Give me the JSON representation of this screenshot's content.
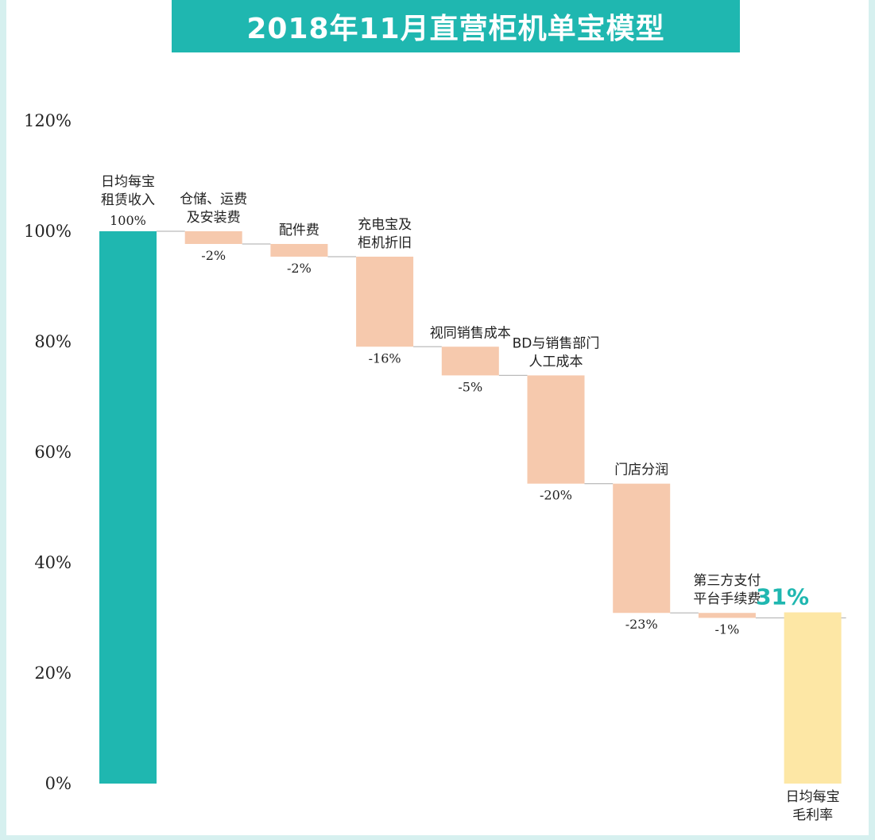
{
  "chart_data": {
    "type": "bar",
    "subtype": "waterfall",
    "title": "2018年11月直营柜机单宝模型",
    "ylim": [
      0,
      120
    ],
    "yticks": [
      "0%",
      "20%",
      "40%",
      "60%",
      "80%",
      "100%",
      "120%"
    ],
    "ytick_values": [
      0,
      20,
      40,
      60,
      80,
      100,
      120
    ],
    "categories": [
      [
        "日均每宝",
        "租赁收入"
      ],
      [
        "仓储、运费",
        "及安装费"
      ],
      [
        "配件费"
      ],
      [
        "充电宝及",
        "柜机折旧"
      ],
      [
        "视同销售成本"
      ],
      [
        "BD与销售部门",
        "人工成本"
      ],
      [
        "门店分润"
      ],
      [
        "第三方支付",
        "平台手续费"
      ],
      [
        "日均每宝",
        "毛利率"
      ]
    ],
    "values": [
      100,
      -2.3,
      -2.3,
      -16.3,
      -5.2,
      -19.6,
      -23.4,
      -0.9,
      31
    ],
    "value_labels": [
      "100%",
      "-2%",
      "-2%",
      "-16%",
      "-5%",
      "-20%",
      "-23%",
      "-1%",
      "31%"
    ],
    "colors": {
      "start": "#1fb7b0",
      "decrease": "#f6c9ad",
      "end": "#fde7a5",
      "connector": "#bbbbbb",
      "final_label": "#1fb7b0"
    },
    "grid": false,
    "legend": "none"
  }
}
